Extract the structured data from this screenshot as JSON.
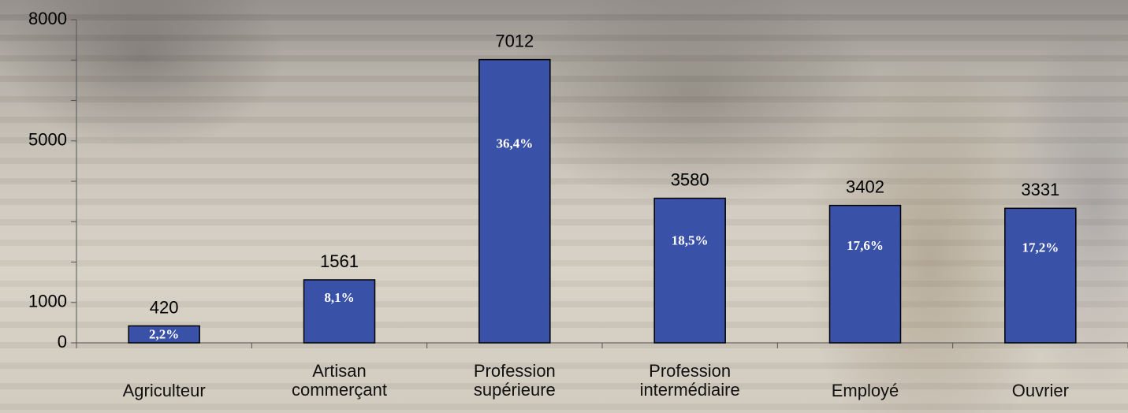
{
  "chart_data": {
    "type": "bar",
    "categories": [
      "Agriculteur",
      "Artisan\ncommerçant",
      "Profession\nsupérieure",
      "Profession\nintermédiaire",
      "Employé",
      "Ouvrier"
    ],
    "values": [
      420,
      1561,
      7012,
      3580,
      3402,
      3331
    ],
    "percent": {
      "values": [
        2.2,
        8.1,
        36.4,
        18.5,
        17.6,
        17.2
      ],
      "value_labels": [
        "2,2%",
        "8,1%",
        "36,4%",
        "18,5%",
        "17,6%",
        "17,2%"
      ]
    },
    "color": "#3a51a8",
    "ylim": [
      0,
      8000
    ],
    "yticks": [
      0,
      1000,
      5000,
      8000
    ],
    "yminorticks": [
      2000,
      3000,
      4000,
      6000,
      7000
    ]
  }
}
